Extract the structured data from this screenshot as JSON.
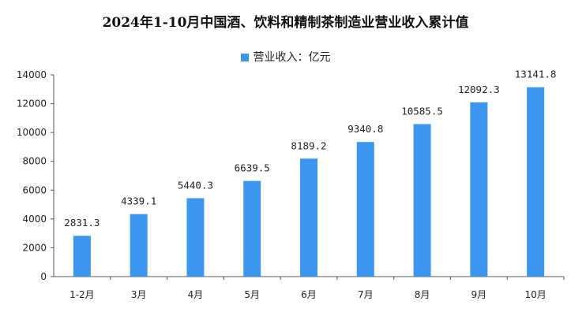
{
  "chart_data": {
    "type": "bar",
    "title": "2024年1-10月中国酒、饮料和精制茶制造业营业收入累计值",
    "xlabel": "",
    "ylabel": "",
    "categories": [
      "1-2月",
      "3月",
      "4月",
      "5月",
      "6月",
      "7月",
      "8月",
      "9月",
      "10月"
    ],
    "series": [
      {
        "name": "营业收入：亿元",
        "values": [
          2831.3,
          4339.1,
          5440.3,
          6639.5,
          8189.2,
          9340.8,
          10585.5,
          12092.3,
          13141.8
        ],
        "color": "#3d96ee"
      }
    ],
    "ylim": [
      0,
      14000
    ],
    "yticks": [
      0,
      2000,
      4000,
      6000,
      8000,
      10000,
      12000,
      14000
    ],
    "grid": false,
    "legend_position": "top-center",
    "data_labels": [
      "2831.3",
      "4339.1",
      "5440.3",
      "6639.5",
      "8189.2",
      "9340.8",
      "10585.5",
      "12092.3",
      "13141.8"
    ]
  }
}
